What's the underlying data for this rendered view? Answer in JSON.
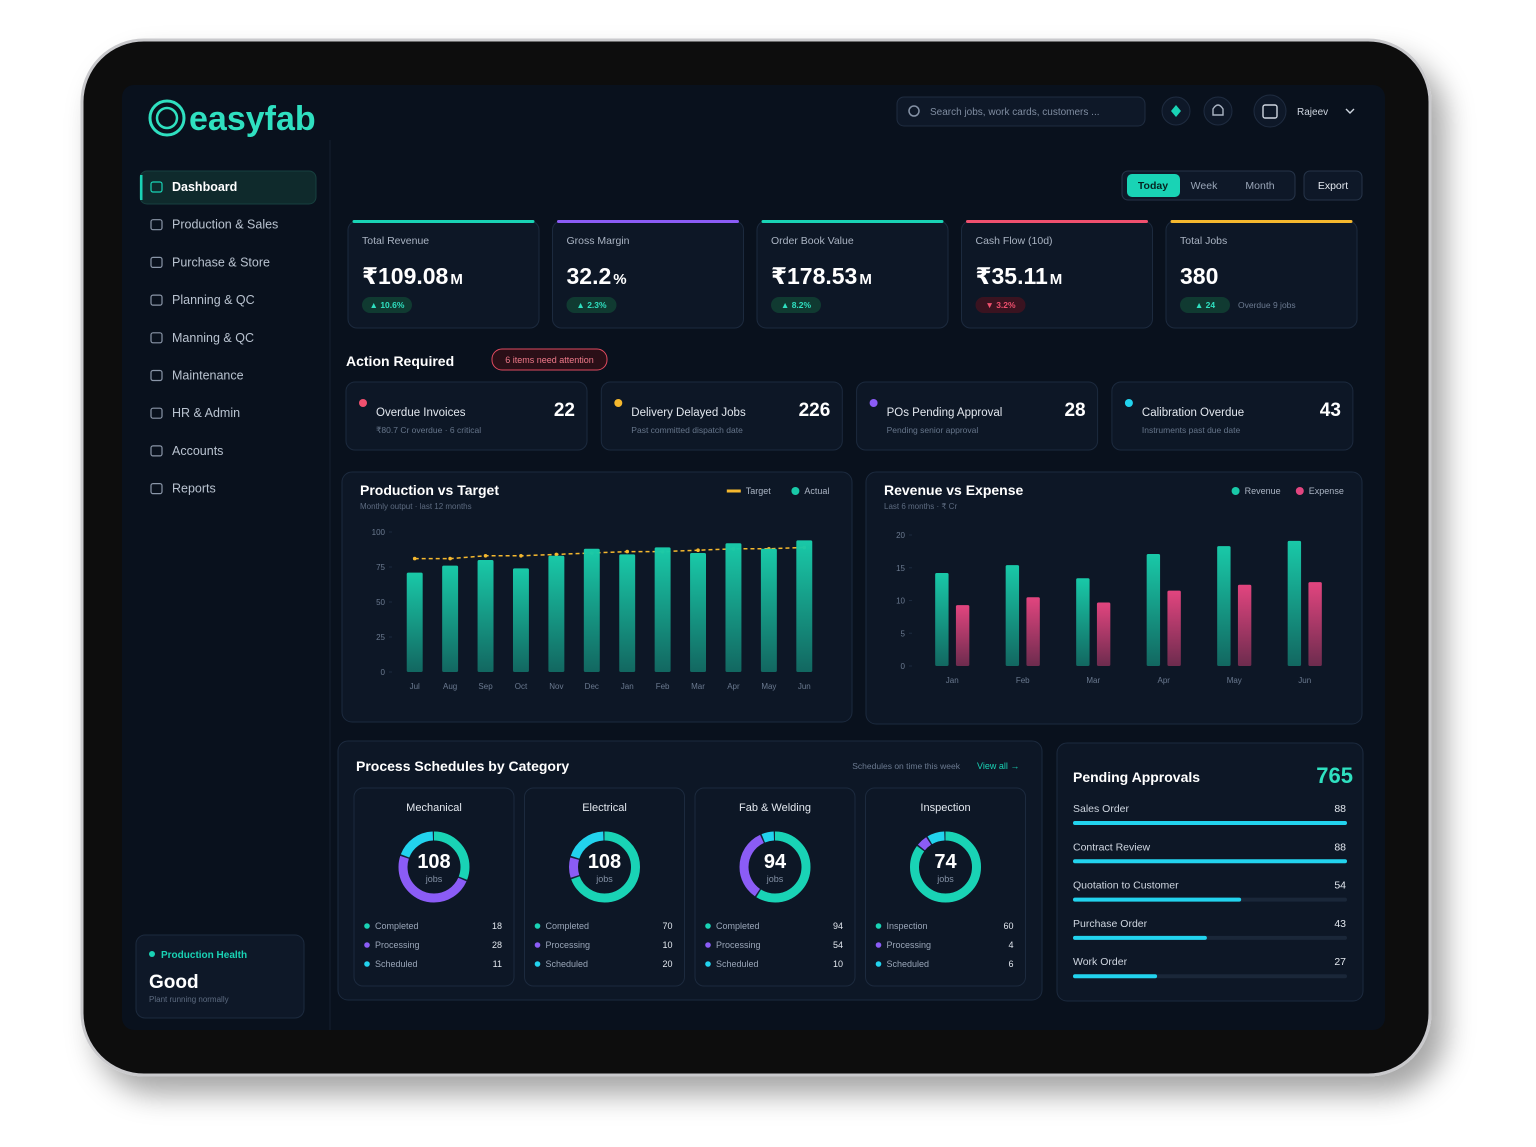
{
  "header": {
    "brand": "easyfab",
    "search": "Search jobs, work cards, customers ...",
    "user": "Rajeev"
  },
  "nav": [
    "Dashboard",
    "Production & Sales",
    "Purchase & Store",
    "Planning & QC",
    "Manning & QC",
    "Maintenance",
    "HR & Admin",
    "Accounts",
    "Reports"
  ],
  "health": {
    "label": "Production Health",
    "status": "Good",
    "note": "Plant running normally"
  },
  "range_tabs": [
    "Today",
    "Week",
    "Month"
  ],
  "export": "Export",
  "kpis": [
    {
      "label": "Total Revenue",
      "value": "₹109.08",
      "unit": "M",
      "change": "▲ 10.6%",
      "trend": "up",
      "color": "#19d3b5"
    },
    {
      "label": "Gross Margin",
      "value": "32.2",
      "unit": "%",
      "change": "▲ 2.3%",
      "trend": "up",
      "color": "#8b5cf6"
    },
    {
      "label": "Order Book Value",
      "value": "₹178.53",
      "unit": "M",
      "change": "▲ 8.2%",
      "trend": "up",
      "color": "#19d3b5"
    },
    {
      "label": "Cash Flow (10d)",
      "value": "₹35.11",
      "unit": "M",
      "change": "▼ 3.2%",
      "trend": "down",
      "color": "#f0506e"
    },
    {
      "label": "Total Jobs",
      "value": "380",
      "change": "▲ 24",
      "trend": "up",
      "note": "Overdue 9 jobs",
      "color": "#f5b82e"
    }
  ],
  "action": {
    "title": "Action Required",
    "badge": "6 items need attention",
    "items": [
      {
        "label": "Overdue Invoices",
        "count": 22,
        "note": "₹80.7 Cr overdue · 6 critical",
        "color": "#f0506e"
      },
      {
        "label": "Delivery Delayed Jobs",
        "count": 226,
        "note": "Past committed dispatch date",
        "color": "#f5b82e"
      },
      {
        "label": "POs Pending Approval",
        "count": 28,
        "note": "Pending senior approval",
        "color": "#8b5cf6"
      },
      {
        "label": "Calibration Overdue",
        "count": 43,
        "note": "Instruments past due date",
        "color": "#22d3ee"
      }
    ]
  },
  "chart_data": [
    {
      "type": "bar",
      "title": "Production vs Target",
      "subtitle": "Monthly output · last 12 months",
      "legend": "top-right",
      "grid": false,
      "categories": [
        "Jul",
        "Aug",
        "Sep",
        "Oct",
        "Nov",
        "Dec",
        "Jan",
        "Feb",
        "Mar",
        "Apr",
        "May",
        "Jun"
      ],
      "ylim": [
        0,
        100
      ],
      "yticks": [
        0,
        25,
        50,
        75,
        100
      ],
      "series": [
        {
          "name": "Target",
          "kind": "line",
          "color": "#f5b82e",
          "values": [
            81,
            81,
            83,
            83,
            84,
            85,
            86,
            86,
            87,
            88,
            88,
            89
          ]
        },
        {
          "name": "Actual",
          "kind": "bar",
          "color": "#19c9a8",
          "values": [
            71,
            76,
            80,
            74,
            83,
            88,
            84,
            89,
            85,
            92,
            88,
            94
          ]
        }
      ]
    },
    {
      "type": "bar",
      "title": "Revenue vs Expense",
      "subtitle": "Last 6 months · ₹ Cr",
      "legend": "top-right",
      "grid": false,
      "categories": [
        "Jan",
        "Feb",
        "Mar",
        "Apr",
        "May",
        "Jun"
      ],
      "ylim": [
        0,
        20
      ],
      "yticks": [
        0,
        5,
        10,
        15,
        20
      ],
      "series": [
        {
          "name": "Revenue",
          "kind": "bar",
          "color": "#19c9a8",
          "values": [
            14.2,
            15.4,
            13.4,
            17.1,
            18.3,
            19.1
          ]
        },
        {
          "name": "Expense",
          "kind": "bar",
          "color": "#e2457f",
          "values": [
            9.3,
            10.5,
            9.7,
            11.5,
            12.4,
            12.8
          ]
        }
      ]
    }
  ],
  "schedules": {
    "title": "Process Schedules by Category",
    "note": "Schedules on time this week",
    "link": "View all →",
    "unit": "jobs",
    "row_colors": [
      "#19d3b5",
      "#8b5cf6",
      "#22d3ee"
    ],
    "groups": [
      {
        "name": "Mechanical",
        "total": 108,
        "rows": [
          {
            "label": "Completed",
            "value": 18
          },
          {
            "label": "Processing",
            "value": 28
          },
          {
            "label": "Scheduled",
            "value": 11
          }
        ]
      },
      {
        "name": "Electrical",
        "total": 108,
        "rows": [
          {
            "label": "Completed",
            "value": 70
          },
          {
            "label": "Processing",
            "value": 10
          },
          {
            "label": "Scheduled",
            "value": 20
          }
        ]
      },
      {
        "name": "Fab & Welding",
        "total": 94,
        "rows": [
          {
            "label": "Completed",
            "value": 94
          },
          {
            "label": "Processing",
            "value": 54
          },
          {
            "label": "Scheduled",
            "value": 10
          }
        ]
      },
      {
        "name": "Inspection",
        "total": 74,
        "rows": [
          {
            "label": "Inspection",
            "value": 60
          },
          {
            "label": "Processing",
            "value": 4
          },
          {
            "label": "Scheduled",
            "value": 6
          }
        ]
      }
    ]
  },
  "approvals": {
    "title": "Pending Approvals",
    "total": 765,
    "items": [
      {
        "label": "Sales Order",
        "value": 88
      },
      {
        "label": "Contract Review",
        "value": 88
      },
      {
        "label": "Quotation to Customer",
        "value": 54
      },
      {
        "label": "Purchase Order",
        "value": 43
      },
      {
        "label": "Work Order",
        "value": 27
      }
    ]
  }
}
